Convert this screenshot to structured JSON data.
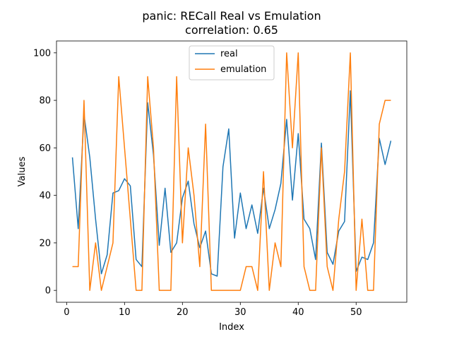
{
  "chart_data": {
    "type": "line",
    "title": "panic: RECall Real vs Emulation",
    "subtitle": "correlation: 0.65",
    "xlabel": "Index",
    "ylabel": "Values",
    "xlim": [
      -1.75,
      58.75
    ],
    "ylim": [
      -5,
      105
    ],
    "xticks": [
      0,
      10,
      20,
      30,
      40,
      50
    ],
    "yticks": [
      0,
      20,
      40,
      60,
      80,
      100
    ],
    "grid": false,
    "legend_position": "top-center",
    "x": [
      1,
      2,
      3,
      4,
      5,
      6,
      7,
      8,
      9,
      10,
      11,
      12,
      13,
      14,
      15,
      16,
      17,
      18,
      19,
      20,
      21,
      22,
      23,
      24,
      25,
      26,
      27,
      28,
      29,
      30,
      31,
      32,
      33,
      34,
      35,
      36,
      37,
      38,
      39,
      40,
      41,
      42,
      43,
      44,
      45,
      46,
      47,
      48,
      49,
      50,
      51,
      52,
      53,
      54,
      55,
      56
    ],
    "series": [
      {
        "name": "real",
        "color": "#1f77b4",
        "values": [
          56,
          26,
          74,
          56,
          30,
          7,
          15,
          41,
          42,
          47,
          44,
          13,
          10,
          79,
          57,
          19,
          43,
          16,
          20,
          39,
          46,
          28,
          18,
          25,
          7,
          6,
          52,
          68,
          22,
          41,
          26,
          36,
          24,
          43,
          26,
          34,
          45,
          72,
          38,
          66,
          30,
          26,
          13,
          62,
          16,
          11,
          25,
          29,
          84,
          8,
          14,
          13,
          20,
          64,
          53,
          63
        ]
      },
      {
        "name": "emulation",
        "color": "#ff7f0e",
        "values": [
          10,
          10,
          80,
          0,
          20,
          0,
          10,
          20,
          90,
          60,
          30,
          0,
          0,
          90,
          60,
          0,
          0,
          0,
          90,
          20,
          60,
          40,
          10,
          70,
          0,
          0,
          0,
          0,
          0,
          0,
          10,
          10,
          0,
          50,
          0,
          20,
          10,
          100,
          60,
          100,
          10,
          0,
          0,
          60,
          10,
          0,
          30,
          50,
          100,
          0,
          30,
          0,
          0,
          70,
          80,
          80
        ]
      }
    ]
  }
}
